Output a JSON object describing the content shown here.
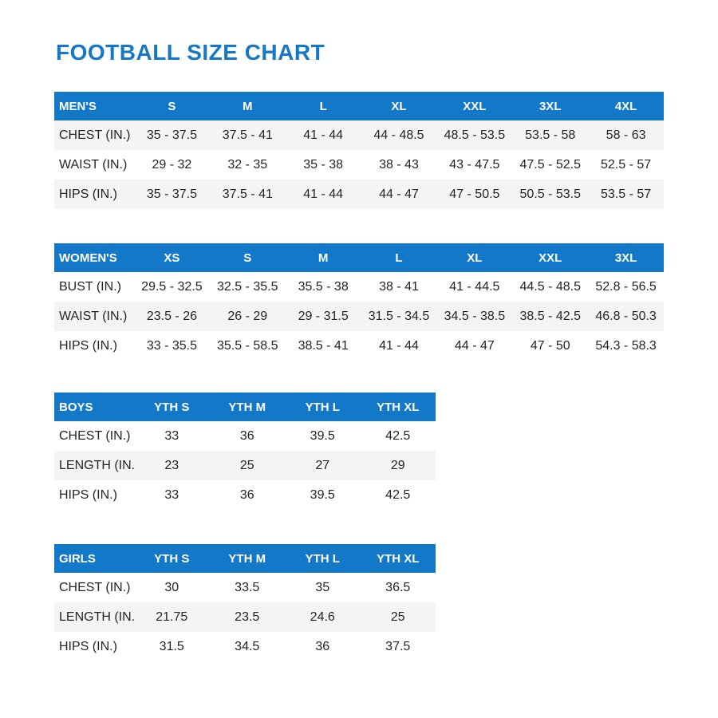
{
  "page": {
    "title": "FOOTBALL SIZE CHART"
  },
  "colors": {
    "title_text": "#1577C8",
    "header_bg": "#1478C8",
    "header_text": "#FFFFFF",
    "row_shaded_bg": "#F4F4F5",
    "row_bg": "#FFFFFF",
    "body_text": "#242424"
  },
  "chart_data": [
    {
      "type": "table",
      "title": "MEN'S",
      "columns": [
        "S",
        "M",
        "L",
        "XL",
        "XXL",
        "3XL",
        "4XL"
      ],
      "rows": [
        {
          "label": "CHEST (IN.)",
          "shaded": true,
          "values": [
            "35 - 37.5",
            "37.5 - 41",
            "41 - 44",
            "44 - 48.5",
            "48.5 - 53.5",
            "53.5 - 58",
            "58 - 63"
          ]
        },
        {
          "label": "WAIST (IN.)",
          "shaded": false,
          "values": [
            "29 - 32",
            "32 - 35",
            "35 - 38",
            "38 - 43",
            "43 - 47.5",
            "47.5 - 52.5",
            "52.5 - 57"
          ]
        },
        {
          "label": "HIPS (IN.)",
          "shaded": true,
          "values": [
            "35 - 37.5",
            "37.5 - 41",
            "41 - 44",
            "44 - 47",
            "47 - 50.5",
            "50.5 - 53.5",
            "53.5 - 57"
          ]
        }
      ]
    },
    {
      "type": "table",
      "title": "WOMEN'S",
      "columns": [
        "XS",
        "S",
        "M",
        "L",
        "XL",
        "XXL",
        "3XL"
      ],
      "rows": [
        {
          "label": "BUST (IN.)",
          "shaded": false,
          "values": [
            "29.5 - 32.5",
            "32.5 - 35.5",
            "35.5 - 38",
            "38 - 41",
            "41 - 44.5",
            "44.5 - 48.5",
            "52.8 - 56.5"
          ]
        },
        {
          "label": "WAIST (IN.)",
          "shaded": true,
          "values": [
            "23.5 - 26",
            "26 - 29",
            "29 - 31.5",
            "31.5 - 34.5",
            "34.5 - 38.5",
            "38.5 - 42.5",
            "46.8 - 50.3"
          ]
        },
        {
          "label": "HIPS (IN.)",
          "shaded": false,
          "values": [
            "33 - 35.5",
            "35.5 - 58.5",
            "38.5 - 41",
            "41 - 44",
            "44 - 47",
            "47 - 50",
            "54.3 - 58.3"
          ]
        }
      ]
    },
    {
      "type": "table",
      "title": "BOYS",
      "columns": [
        "YTH S",
        "YTH M",
        "YTH L",
        "YTH XL"
      ],
      "rows": [
        {
          "label": "CHEST (IN.)",
          "shaded": false,
          "values": [
            "33",
            "36",
            "39.5",
            "42.5"
          ]
        },
        {
          "label": "LENGTH (IN.)",
          "shaded": true,
          "values": [
            "23",
            "25",
            "27",
            "29"
          ]
        },
        {
          "label": "HIPS (IN.)",
          "shaded": false,
          "values": [
            "33",
            "36",
            "39.5",
            "42.5"
          ]
        }
      ]
    },
    {
      "type": "table",
      "title": "GIRLS",
      "columns": [
        "YTH S",
        "YTH M",
        "YTH L",
        "YTH XL"
      ],
      "rows": [
        {
          "label": "CHEST (IN.)",
          "shaded": false,
          "values": [
            "30",
            "33.5",
            "35",
            "36.5"
          ]
        },
        {
          "label": "LENGTH (IN.)",
          "shaded": true,
          "values": [
            "21.75",
            "23.5",
            "24.6",
            "25"
          ]
        },
        {
          "label": "HIPS (IN.)",
          "shaded": false,
          "values": [
            "31.5",
            "34.5",
            "36",
            "37.5"
          ]
        }
      ]
    }
  ]
}
